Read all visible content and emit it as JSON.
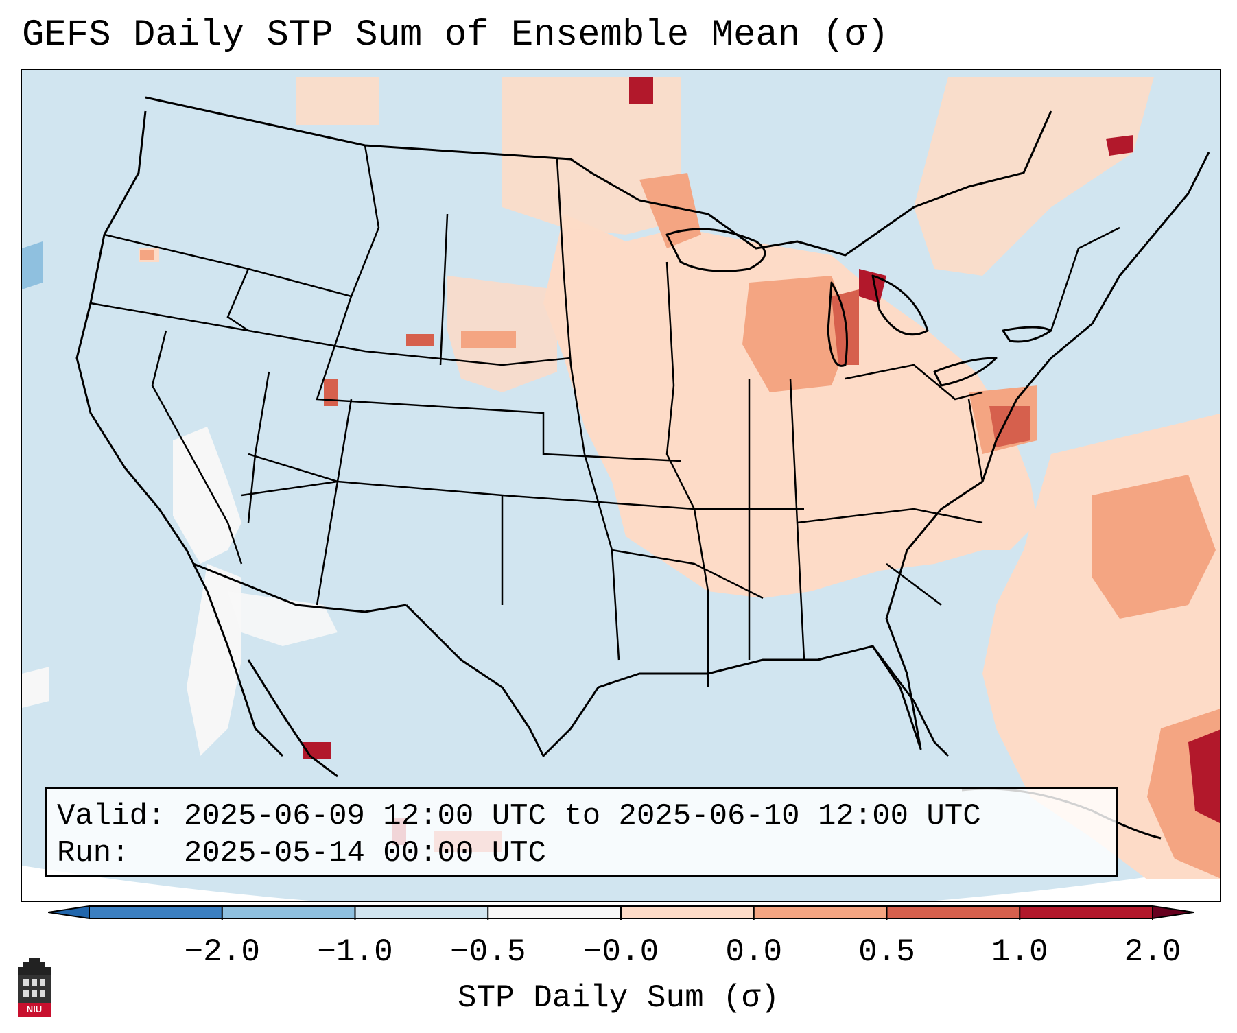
{
  "title": "GEFS Daily STP Sum of Ensemble Mean (σ)",
  "info": {
    "valid_label": "Valid:",
    "valid_value": "2025-06-09 12:00 UTC to 2025-06-10 12:00 UTC",
    "run_label": "Run:",
    "run_value": "2025-05-14 00:00 UTC"
  },
  "colorbar": {
    "title": "STP Daily Sum (σ)",
    "ticks": [
      "−2.0",
      "−1.0",
      "−0.5",
      "−0.0",
      "0.0",
      "0.5",
      "1.0",
      "2.0"
    ],
    "colors": [
      "#3b7fc1",
      "#8fc0df",
      "#d1e5f0",
      "#f7f7f7",
      "#fddbc7",
      "#f4a582",
      "#d6604d",
      "#b2182b"
    ]
  },
  "map": {
    "region": "Contiguous United States",
    "background_color": "#d1e5f0",
    "outside_color": "#ffffff",
    "line_color": "#000000"
  },
  "logo": {
    "text": "NIU"
  }
}
